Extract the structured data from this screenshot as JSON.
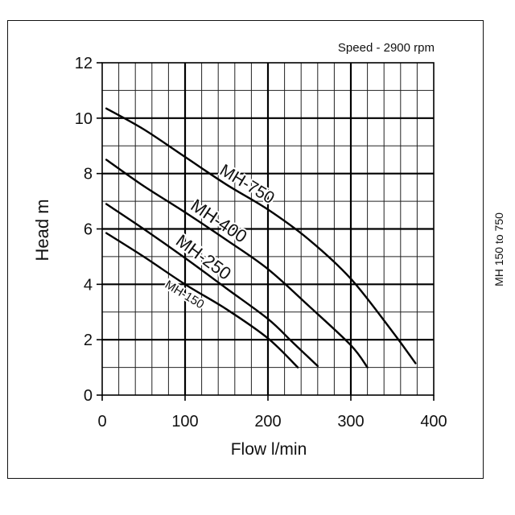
{
  "side_label": "MH 150 to 750",
  "chart_data": {
    "type": "line",
    "annotation": "Speed - 2900 rpm",
    "xlabel": "Flow l/min",
    "ylabel": "Head m",
    "xlim": [
      0,
      400
    ],
    "ylim": [
      0,
      12
    ],
    "xticks": [
      0,
      100,
      200,
      300,
      400
    ],
    "yticks": [
      0,
      2,
      4,
      6,
      8,
      10,
      12
    ],
    "grid": true,
    "minor_grid": {
      "x_step": 20,
      "y_step": 1
    },
    "series": [
      {
        "name": "MH-750",
        "x": [
          5,
          50,
          100,
          150,
          200,
          250,
          300,
          350,
          378
        ],
        "y": [
          10.35,
          9.6,
          8.6,
          7.6,
          6.7,
          5.6,
          4.2,
          2.3,
          1.15
        ]
      },
      {
        "name": "MH-400",
        "x": [
          5,
          50,
          100,
          150,
          200,
          250,
          300,
          320
        ],
        "y": [
          8.5,
          7.55,
          6.6,
          5.6,
          4.55,
          3.2,
          1.8,
          1.0
        ]
      },
      {
        "name": "MH-250",
        "x": [
          5,
          50,
          100,
          150,
          200,
          230,
          260
        ],
        "y": [
          6.9,
          6.0,
          4.95,
          3.85,
          2.75,
          1.9,
          1.05
        ]
      },
      {
        "name": "MH-150",
        "x": [
          5,
          50,
          100,
          150,
          200,
          236
        ],
        "y": [
          5.85,
          5.0,
          4.0,
          3.1,
          2.05,
          1.0
        ]
      }
    ]
  }
}
